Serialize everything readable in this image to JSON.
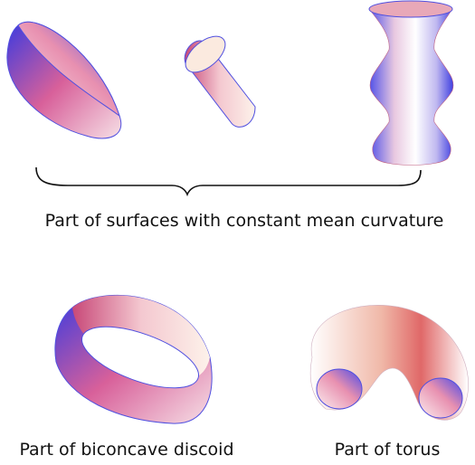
{
  "top": {
    "caption": "Part of surfaces with constant mean curvature"
  },
  "bottom": {
    "items": [
      {
        "caption": "Part of biconcave discoid"
      },
      {
        "caption": "Part of torus"
      }
    ]
  }
}
